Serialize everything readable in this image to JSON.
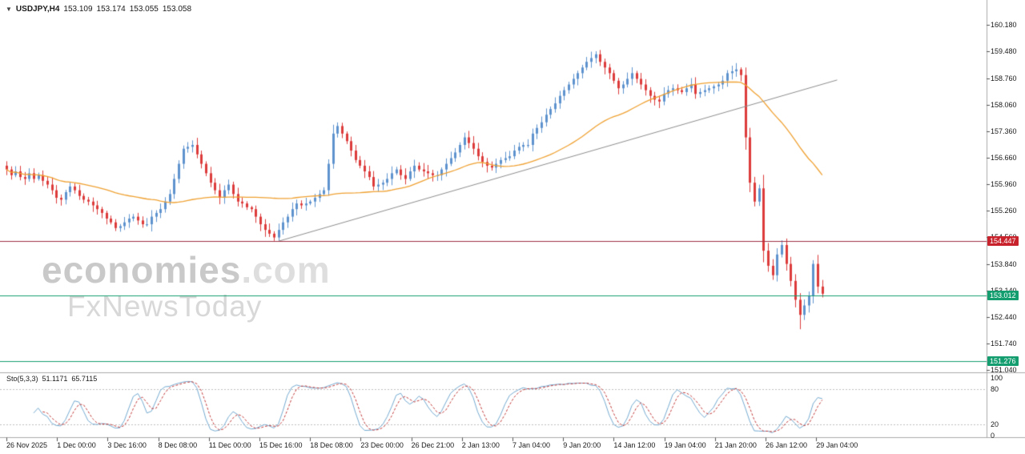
{
  "header": {
    "collapse_icon": "▼",
    "symbol_period": "USDJPY,H4",
    "open": "153.109",
    "high": "153.174",
    "low": "153.055",
    "close": "153.058"
  },
  "watermark": {
    "line1_bold": "economies",
    "line1_light": ".com",
    "line2": "FxNewsToday"
  },
  "price_axis": {
    "ticks": [
      "160.180",
      "159.480",
      "158.760",
      "158.060",
      "157.360",
      "156.660",
      "155.960",
      "155.260",
      "154.560",
      "153.840",
      "153.140",
      "152.440",
      "151.740",
      "151.040"
    ],
    "badges": [
      {
        "label": "154.447",
        "price": 154.447,
        "color": "#C8232C"
      },
      {
        "label": "153.012",
        "price": 153.012,
        "color": "#149E70"
      },
      {
        "label": "151.276",
        "price": 151.276,
        "color": "#149E70"
      }
    ]
  },
  "time_axis": {
    "labels": [
      "26 Nov 2025",
      "1 Dec 00:00",
      "3 Dec 16:00",
      "8 Dec 08:00",
      "11 Dec 00:00",
      "15 Dec 16:00",
      "18 Dec 08:00",
      "23 Dec 00:00",
      "26 Dec 21:00",
      "2 Jan 13:00",
      "7 Jan 04:00",
      "9 Jan 20:00",
      "14 Jan 12:00",
      "19 Jan 04:00",
      "21 Jan 20:00",
      "26 Jan 12:00",
      "29 Jan 04:00"
    ]
  },
  "indicator_pane": {
    "title": "Sto(5,3,3)",
    "k_value": "51.1171",
    "d_value": "65.7115"
  },
  "colors": {
    "background": "#FFFFFF",
    "bull": "#5E93CE",
    "bear": "#DD3B3B",
    "ma": "#EFA132",
    "trendline": "#8C8C8C",
    "separator": "#ABABAB",
    "tick": "#555555",
    "hline_red": "#9E2F44",
    "hline_green": "#149E70",
    "stoch_k": "#74AAD0",
    "stoch_d": "#C23B3B",
    "stoch_level": "#BFBFBF"
  },
  "chart_data": {
    "type": "candlestick",
    "symbol": "USDJPY",
    "timeframe": "H4",
    "title": "USDJPY,H4",
    "current_ohlc": {
      "open": 153.109,
      "high": 153.174,
      "low": 153.055,
      "close": 153.058
    },
    "ylim": [
      150.9,
      160.7
    ],
    "y_ticks": [
      160.18,
      159.48,
      158.76,
      158.06,
      157.36,
      156.66,
      155.96,
      155.26,
      154.56,
      153.84,
      153.14,
      152.44,
      151.74,
      151.04
    ],
    "first_open": 156.45,
    "closes": [
      156.35,
      156.2,
      156.3,
      156.15,
      156.1,
      156.25,
      156.1,
      156.2,
      156.05,
      155.95,
      155.8,
      155.6,
      155.55,
      155.75,
      155.9,
      155.8,
      155.65,
      155.55,
      155.5,
      155.4,
      155.3,
      155.2,
      155.05,
      154.95,
      154.8,
      154.85,
      154.95,
      155.05,
      155.1,
      155.0,
      154.9,
      154.9,
      155.1,
      155.2,
      155.3,
      155.5,
      155.7,
      156.1,
      156.5,
      156.9,
      156.95,
      157.0,
      156.75,
      156.5,
      156.25,
      156.0,
      155.8,
      155.6,
      155.8,
      155.95,
      155.7,
      155.5,
      155.45,
      155.35,
      155.3,
      155.1,
      154.9,
      154.75,
      154.65,
      154.55,
      154.75,
      154.95,
      155.1,
      155.3,
      155.45,
      155.4,
      155.45,
      155.5,
      155.6,
      155.7,
      155.8,
      156.5,
      157.3,
      157.5,
      157.3,
      157.1,
      156.85,
      156.6,
      156.45,
      156.3,
      156.15,
      155.9,
      155.95,
      156.0,
      156.1,
      156.25,
      156.35,
      156.2,
      156.1,
      156.3,
      156.45,
      156.35,
      156.3,
      156.25,
      156.2,
      156.2,
      156.35,
      156.5,
      156.65,
      156.8,
      157.0,
      157.2,
      157.05,
      156.9,
      156.7,
      156.55,
      156.45,
      156.4,
      156.5,
      156.6,
      156.65,
      156.7,
      156.85,
      156.95,
      157.0,
      157.0,
      157.3,
      157.45,
      157.6,
      157.8,
      157.95,
      158.1,
      158.3,
      158.45,
      158.6,
      158.75,
      158.9,
      159.05,
      159.2,
      159.3,
      159.4,
      159.2,
      159.05,
      158.9,
      158.7,
      158.5,
      158.6,
      158.75,
      158.9,
      158.75,
      158.6,
      158.45,
      158.3,
      158.2,
      158.15,
      158.35,
      158.45,
      158.5,
      158.45,
      158.4,
      158.5,
      158.6,
      158.35,
      158.4,
      158.45,
      158.5,
      158.55,
      158.6,
      158.7,
      158.9,
      158.95,
      159.0,
      158.85,
      157.2,
      156.0,
      155.5,
      155.85,
      154.2,
      153.8,
      153.55,
      154.1,
      154.35,
      153.85,
      153.4,
      152.9,
      152.5,
      152.75,
      153.0,
      153.85,
      153.25,
      153.06
    ],
    "wick_overrides": {
      "24": {
        "low": 154.72
      },
      "59": {
        "low": 154.46
      },
      "130": {
        "high": 159.48
      },
      "163": {
        "high": 159.05
      },
      "175": {
        "low": 152.12
      },
      "178": {
        "high": 153.95
      }
    },
    "ma_period": 34,
    "trendline": {
      "from_candle": 60,
      "from_price": 154.45,
      "to_candle": 183.3,
      "to_price": 158.72
    },
    "h_lines": [
      {
        "price": 154.447,
        "color": "#9E2F44"
      },
      {
        "price": 153.012,
        "color": "#149E70"
      },
      {
        "price": 151.276,
        "color": "#149E70"
      }
    ],
    "stochastic": {
      "name": "Sto(5,3,3)",
      "k_period": 5,
      "slowing": 3,
      "d_period": 3,
      "k_current": 51.1171,
      "d_current": 65.7115,
      "levels": [
        80,
        20
      ],
      "scale": [
        100,
        80,
        20,
        0
      ],
      "range": [
        0,
        100
      ]
    }
  }
}
